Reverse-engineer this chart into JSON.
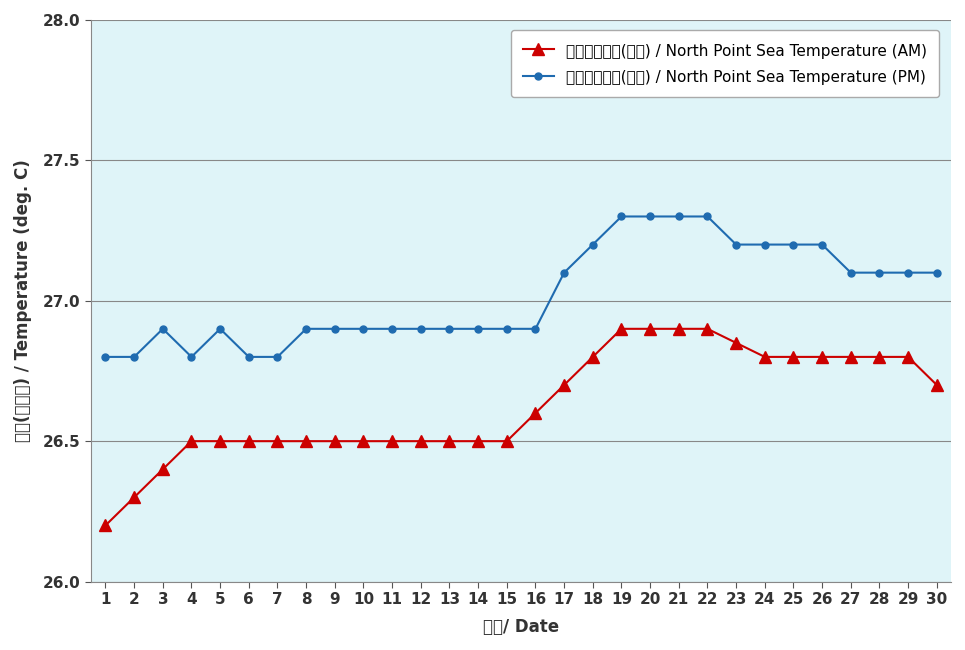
{
  "days": [
    1,
    2,
    3,
    4,
    5,
    6,
    7,
    8,
    9,
    10,
    11,
    12,
    13,
    14,
    15,
    16,
    17,
    18,
    19,
    20,
    21,
    22,
    23,
    24,
    25,
    26,
    27,
    28,
    29,
    30
  ],
  "am_temps": [
    26.2,
    26.3,
    26.4,
    26.5,
    26.5,
    26.5,
    26.5,
    26.5,
    26.5,
    26.5,
    26.5,
    26.5,
    26.5,
    26.5,
    26.5,
    26.6,
    26.7,
    26.8,
    26.9,
    26.9,
    26.9,
    26.9,
    26.85,
    26.8,
    26.8,
    26.8,
    26.8,
    26.8,
    26.8,
    26.7
  ],
  "pm_temps": [
    26.8,
    26.8,
    26.9,
    26.8,
    26.9,
    26.8,
    26.8,
    26.9,
    26.9,
    26.9,
    26.9,
    26.9,
    26.9,
    26.9,
    26.9,
    26.9,
    27.1,
    27.2,
    27.3,
    27.3,
    27.3,
    27.3,
    27.2,
    27.2,
    27.2,
    27.2,
    27.1,
    27.1,
    27.1,
    27.1
  ],
  "am_color": "#cc0000",
  "pm_color": "#1f6bb0",
  "plot_bg": "#dff4f8",
  "outer_bg": "#ffffff",
  "legend_bg": "#ffffff",
  "ylim": [
    26.0,
    28.0
  ],
  "yticks": [
    26.0,
    26.5,
    27.0,
    27.5,
    28.0
  ],
  "xlabel": "日期/ Date",
  "ylabel": "溫度(攝氏度) / Temperature (deg. C)",
  "am_label": "北角海水溫度(上午) / North Point Sea Temperature (AM)",
  "pm_label": "北角海水溫度(下午) / North Point Sea Temperature (PM)",
  "tick_fontsize": 11,
  "axis_fontsize": 12,
  "legend_fontsize": 11
}
